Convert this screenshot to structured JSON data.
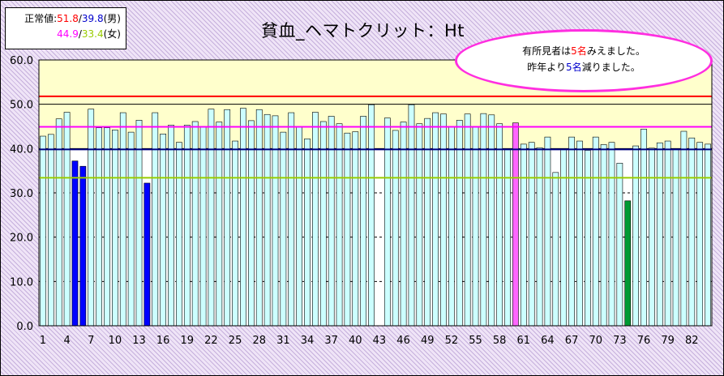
{
  "legend": {
    "prefix": "正常値:",
    "male_upper": "51.8",
    "slash": "/",
    "male_lower": "39.8",
    "male_label": "(男)",
    "female_upper": "44.9",
    "female_lower": "33.4",
    "female_label": "(女)"
  },
  "title": "貧血_ヘマトクリット：Ht",
  "note": {
    "line1_pre": "有所見者は",
    "line1_num": "5名",
    "line1_post": "みえました。",
    "line2_pre": "昨年より",
    "line2_num": "5名",
    "line2_post": "減りました。"
  },
  "colors": {
    "male_upper_line": "#ff0000",
    "male_lower_line": "#000080",
    "female_upper_line": "#ff00ff",
    "female_lower_line": "#99cc00",
    "bar_normal": "#ccffff",
    "bar_male_low": "#0000ff",
    "bar_female_high": "#ff66ff",
    "bar_female_low": "#009933",
    "plot_bg": "#ffffcc"
  },
  "chart_data": {
    "type": "bar",
    "ylim": [
      0,
      60
    ],
    "yticks": [
      "0.0",
      "10.0",
      "20.0",
      "30.0",
      "40.0",
      "50.0",
      "60.0"
    ],
    "xtick_labels": [
      "1",
      "4",
      "7",
      "10",
      "13",
      "16",
      "19",
      "22",
      "25",
      "28",
      "31",
      "34",
      "37",
      "40",
      "43",
      "46",
      "49",
      "52",
      "55",
      "58",
      "61",
      "64",
      "67",
      "70",
      "73",
      "76",
      "79",
      "82"
    ],
    "categories_count": 84,
    "reference_lines": [
      51.8,
      39.8,
      44.9,
      33.4
    ],
    "values": [
      42.8,
      43.2,
      46.7,
      48.2,
      37.2,
      36.0,
      48.9,
      44.7,
      44.7,
      44.2,
      48.1,
      43.7,
      46.4,
      32.2,
      48.1,
      43.3,
      45.3,
      41.4,
      45.3,
      46.1,
      44.8,
      48.9,
      46.0,
      48.8,
      41.7,
      49.1,
      46.3,
      48.8,
      47.7,
      47.4,
      43.7,
      48.1,
      45.0,
      42.2,
      48.2,
      46.1,
      47.3,
      45.6,
      43.5,
      43.8,
      47.3,
      49.9,
      null,
      46.9,
      44.1,
      46.0,
      49.9,
      45.6,
      46.8,
      48.1,
      47.8,
      44.9,
      46.4,
      47.8,
      44.8,
      47.9,
      47.6,
      45.6,
      40.0,
      45.8,
      41.0,
      41.4,
      40.2,
      42.6,
      34.6,
      40.0,
      42.6,
      41.7,
      39.6,
      42.6,
      40.9,
      41.4,
      36.7,
      28.2,
      40.6,
      44.4,
      40.1,
      41.3,
      41.7,
      39.8,
      43.9,
      42.4,
      41.4,
      41.0
    ],
    "highlight": {
      "male_low": [
        5,
        6,
        14
      ],
      "female_high": [
        60
      ],
      "female_low": [
        74
      ]
    }
  }
}
